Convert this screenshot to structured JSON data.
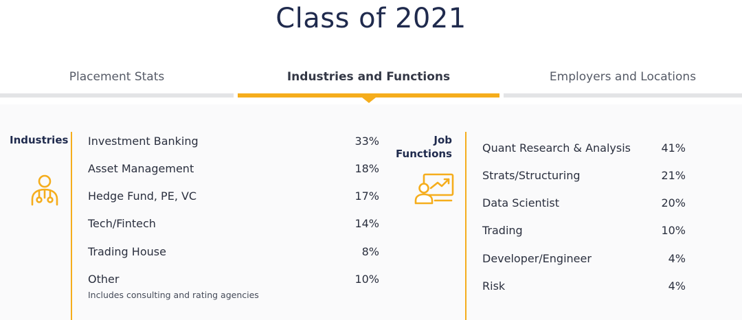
{
  "title": "Class of 2021",
  "tabs": [
    {
      "label": "Placement Stats",
      "active": false
    },
    {
      "label": "Industries and Functions",
      "active": true
    },
    {
      "label": "Employers and Locations",
      "active": false
    }
  ],
  "colors": {
    "accent": "#f5ad1c",
    "title": "#1f2a4d",
    "inactive_bar": "#e3e4e6"
  },
  "industries": {
    "label": "Industries",
    "icon": "person-network-icon",
    "items": [
      {
        "name": "Investment Banking",
        "pct": "33%"
      },
      {
        "name": "Asset Management",
        "pct": "18%"
      },
      {
        "name": "Hedge Fund, PE, VC",
        "pct": "17%"
      },
      {
        "name": "Tech/Fintech",
        "pct": "14%"
      },
      {
        "name": "Trading House",
        "pct": "8%"
      },
      {
        "name": "Other",
        "pct": "10%"
      }
    ],
    "other_note": "Includes consulting and rating agencies"
  },
  "job_functions": {
    "label_line1": "Job",
    "label_line2": "Functions",
    "icon": "presentation-chart-icon",
    "items": [
      {
        "name": "Quant Research & Analysis",
        "pct": "41%"
      },
      {
        "name": "Strats/Structuring",
        "pct": "21%"
      },
      {
        "name": "Data Scientist",
        "pct": "20%"
      },
      {
        "name": "Trading",
        "pct": "10%"
      },
      {
        "name": "Developer/Engineer",
        "pct": "4%"
      },
      {
        "name": "Risk",
        "pct": "4%"
      }
    ]
  }
}
